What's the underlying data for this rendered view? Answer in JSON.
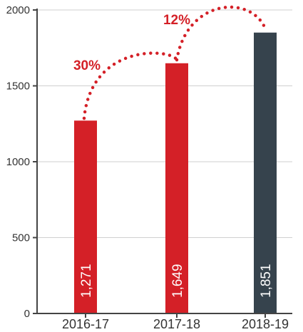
{
  "chart_data": {
    "type": "bar",
    "categories": [
      "2016-17",
      "2017-18",
      "2018-19"
    ],
    "values": [
      1271,
      1649,
      1851
    ],
    "value_labels": [
      "1,271",
      "1,649",
      "1,851"
    ],
    "bar_colors": [
      "#d42027",
      "#d42027",
      "#36434d"
    ],
    "ylim": [
      0,
      2000
    ],
    "yticks": [
      0,
      500,
      1000,
      1500,
      2000
    ],
    "ytick_labels": [
      "0",
      "500",
      "1000",
      "1500",
      "2000"
    ],
    "grid": true,
    "growth_annotations": [
      {
        "from": "2016-17",
        "to": "2017-18",
        "label": "30%"
      },
      {
        "from": "2017-18",
        "to": "2018-19",
        "label": "12%"
      }
    ],
    "accent_color": "#d42027",
    "title": "",
    "xlabel": "",
    "ylabel": ""
  }
}
